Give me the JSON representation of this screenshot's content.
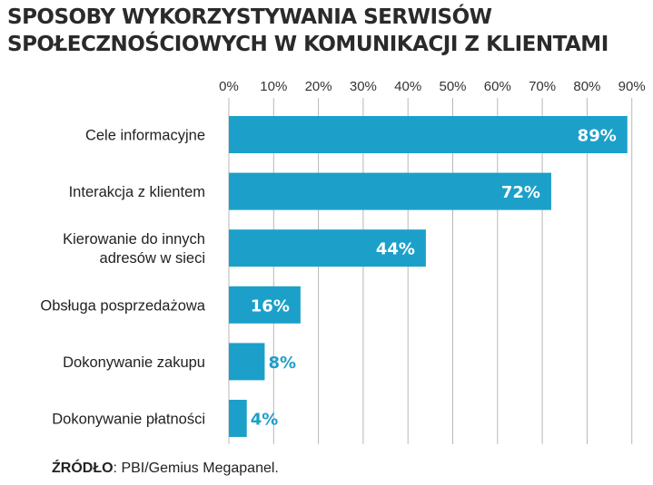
{
  "title_lines": [
    "SPOSOBY WYKORZYSTYWANIA SERWISÓW",
    "SPOŁECZNOŚCIOWYCH W KOMUNIKACJI Z KLIENTAMI"
  ],
  "source": {
    "label": "ŹRÓDŁO",
    "text": ": PBI/Gemius Megapanel."
  },
  "colors": {
    "bar": "#1ca0c9",
    "grid": "#b8b8b8",
    "label_light": "#ffffff",
    "label_dark": "#1ca0c9"
  },
  "chart_data": {
    "type": "bar",
    "orientation": "horizontal",
    "title": "SPOSOBY WYKORZYSTYWANIA SERWISÓW SPOŁECZNOŚCIOWYCH W KOMUNIKACJI Z KLIENTAMI",
    "categories": [
      [
        "Cele informacyjne"
      ],
      [
        "Interakcja z klientem"
      ],
      [
        "Kierowanie do innych",
        "adresów w sieci"
      ],
      [
        "Obsługa posprzedażowa"
      ],
      [
        "Dokonywanie zakupu"
      ],
      [
        "Dokonywanie płatności"
      ]
    ],
    "values": [
      89,
      72,
      44,
      16,
      8,
      4
    ],
    "value_labels": [
      "89%",
      "72%",
      "44%",
      "16%",
      "8%",
      "4%"
    ],
    "x_ticks": [
      "0%",
      "10%",
      "20%",
      "30%",
      "40%",
      "50%",
      "60%",
      "70%",
      "80%",
      "90%"
    ],
    "xlim": [
      0,
      90
    ],
    "xlabel": "",
    "ylabel": "",
    "grid": true,
    "axis_position": "top"
  }
}
